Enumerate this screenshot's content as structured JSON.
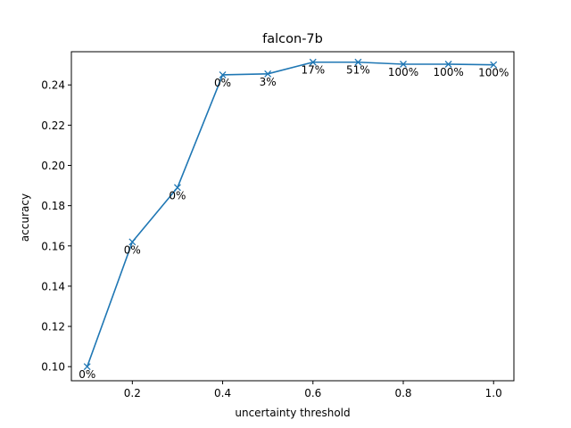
{
  "chart_data": {
    "type": "line",
    "title": "falcon-7b",
    "xlabel": "uncertainty threshold",
    "ylabel": "accuracy",
    "xlim": [
      0.065,
      1.045
    ],
    "ylim": [
      0.093,
      0.2565
    ],
    "xticks": [
      0.2,
      0.4,
      0.6,
      0.8,
      1.0
    ],
    "xtick_labels": [
      "0.2",
      "0.4",
      "0.6",
      "0.8",
      "1.0"
    ],
    "yticks": [
      0.1,
      0.12,
      0.14,
      0.16,
      0.18,
      0.2,
      0.22,
      0.24
    ],
    "ytick_labels": [
      "0.10",
      "0.12",
      "0.14",
      "0.16",
      "0.18",
      "0.20",
      "0.22",
      "0.24"
    ],
    "grid": false,
    "marker": "x",
    "line_color": "#1f77b4",
    "series": [
      {
        "x": [
          0.1,
          0.2,
          0.3,
          0.4,
          0.5,
          0.6,
          0.7,
          0.8,
          0.9,
          1.0
        ],
        "values": [
          0.1,
          0.162,
          0.189,
          0.245,
          0.2455,
          0.2513,
          0.2513,
          0.2503,
          0.2503,
          0.25
        ],
        "point_labels": [
          "0%",
          "0%",
          "0%",
          "0%",
          "3%",
          "17%",
          "51%",
          "100%",
          "100%",
          "100%"
        ]
      }
    ]
  }
}
